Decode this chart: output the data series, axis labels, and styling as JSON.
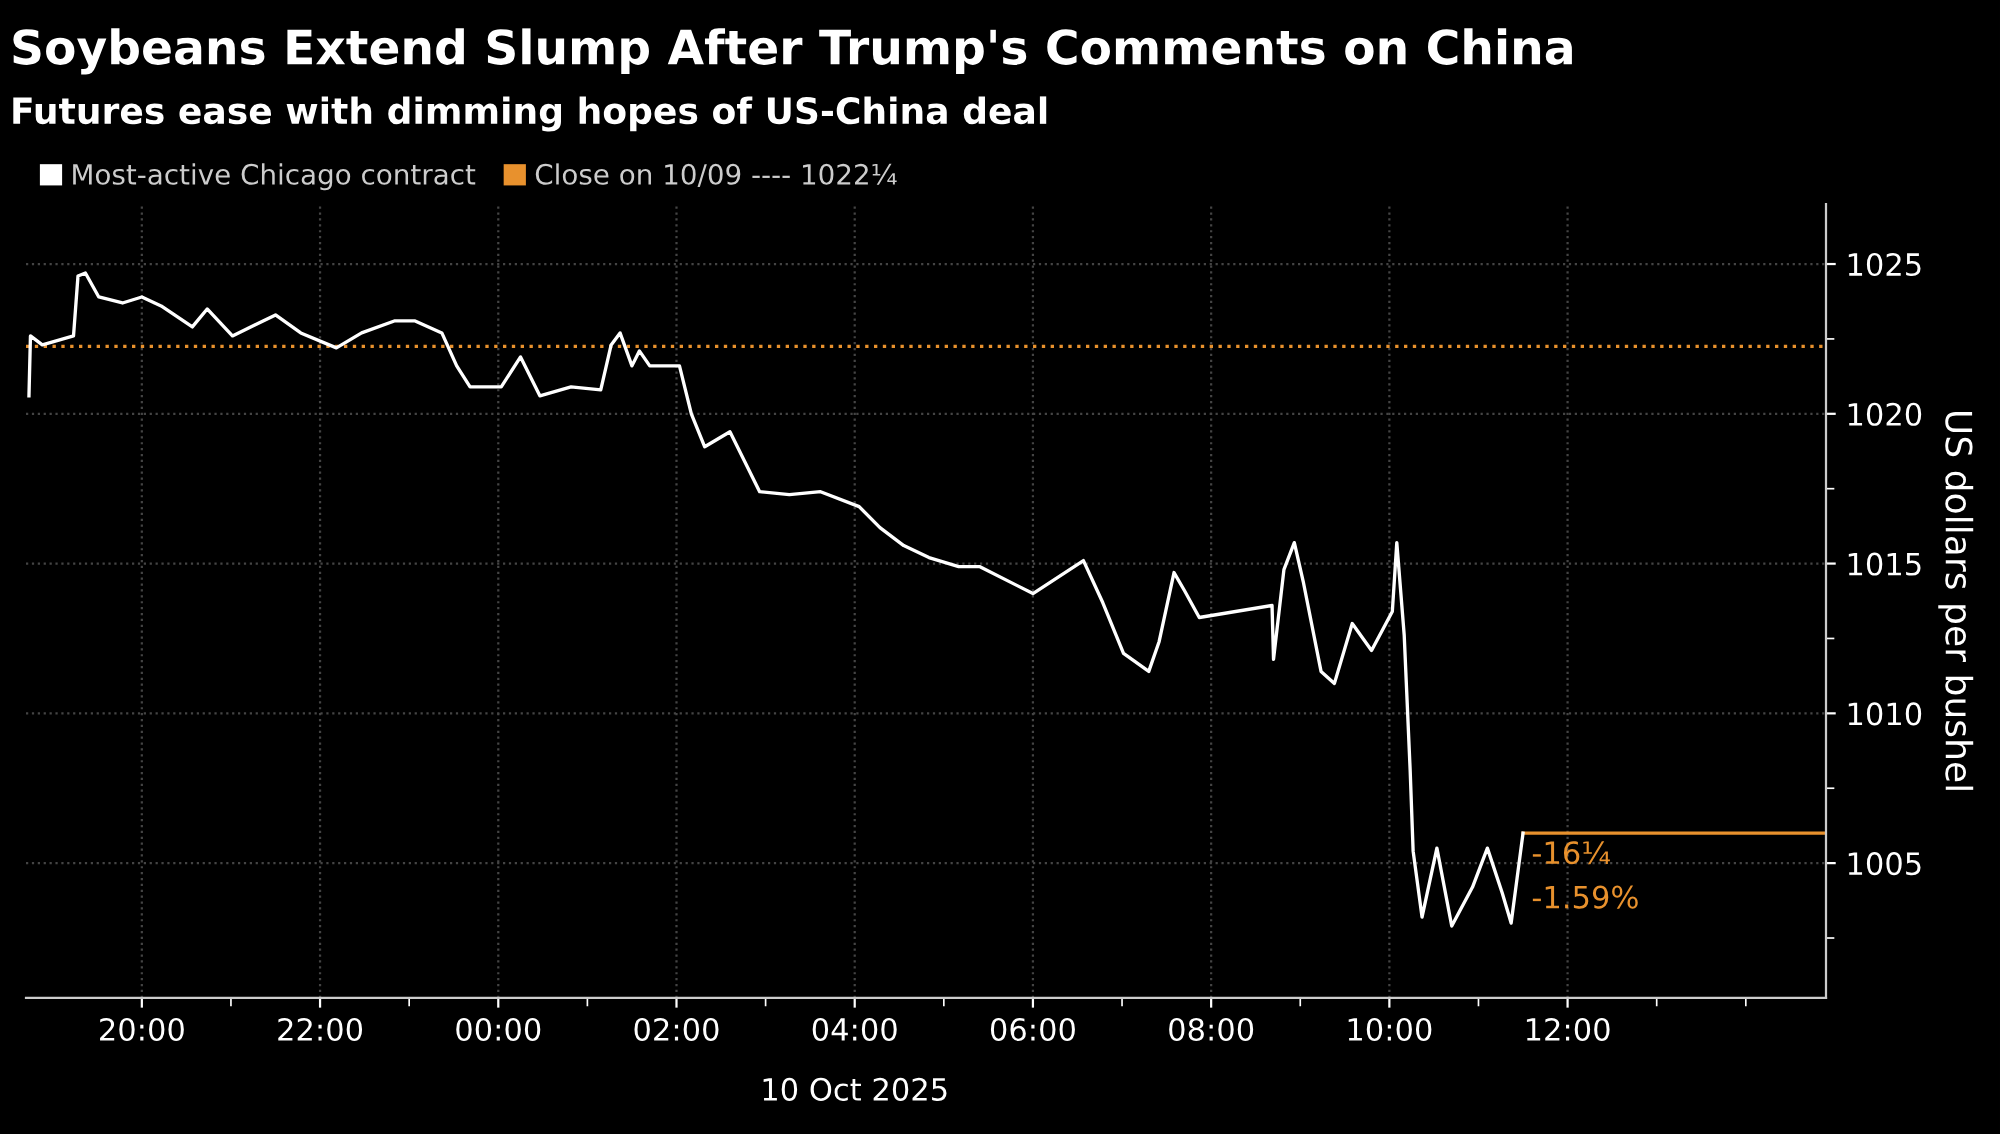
{
  "chart_data": {
    "type": "line",
    "title": "Soybeans Extend Slump After Trump's Comments on China",
    "subtitle": "Futures ease with dimming hopes of US-China deal",
    "ylabel": "US dollars per bushel",
    "series": [
      {
        "name": "Most-active Chicago contract",
        "color": "#ffffff",
        "x": [
          "2025-10-09T18:44",
          "2025-10-09T18:45",
          "2025-10-09T18:53",
          "2025-10-09T19:07",
          "2025-10-09T19:14",
          "2025-10-09T19:17",
          "2025-10-09T19:22",
          "2025-10-09T19:31",
          "2025-10-09T19:47",
          "2025-10-09T20:00",
          "2025-10-09T20:13",
          "2025-10-09T20:34",
          "2025-10-09T20:44",
          "2025-10-09T21:01",
          "2025-10-09T21:30",
          "2025-10-09T21:47",
          "2025-10-09T22:11",
          "2025-10-09T22:28",
          "2025-10-09T22:50",
          "2025-10-09T23:04",
          "2025-10-09T23:22",
          "2025-10-09T23:32",
          "2025-10-09T23:41",
          "2025-10-10T00:02",
          "2025-10-10T00:15",
          "2025-10-10T00:28",
          "2025-10-10T00:49",
          "2025-10-10T01:09",
          "2025-10-10T01:16",
          "2025-10-10T01:22",
          "2025-10-10T01:30",
          "2025-10-10T01:35",
          "2025-10-10T01:42",
          "2025-10-10T02:02",
          "2025-10-10T02:10",
          "2025-10-10T02:19",
          "2025-10-10T02:36",
          "2025-10-10T02:46",
          "2025-10-10T02:56",
          "2025-10-10T03:16",
          "2025-10-10T03:37",
          "2025-10-10T04:03",
          "2025-10-10T04:17",
          "2025-10-10T04:33",
          "2025-10-10T04:50",
          "2025-10-10T05:10",
          "2025-10-10T05:24",
          "2025-10-10T06:00",
          "2025-10-10T06:34",
          "2025-10-10T06:47",
          "2025-10-10T07:01",
          "2025-10-10T07:18",
          "2025-10-10T07:25",
          "2025-10-10T07:35",
          "2025-10-10T07:42",
          "2025-10-10T07:52",
          "2025-10-10T08:41",
          "2025-10-10T08:42",
          "2025-10-10T08:49",
          "2025-10-10T08:56",
          "2025-10-10T09:02",
          "2025-10-10T09:14",
          "2025-10-10T09:23",
          "2025-10-10T09:35",
          "2025-10-10T09:48",
          "2025-10-10T10:02",
          "2025-10-10T10:05",
          "2025-10-10T10:10",
          "2025-10-10T10:14",
          "2025-10-10T10:16",
          "2025-10-10T10:22",
          "2025-10-10T10:32",
          "2025-10-10T10:42",
          "2025-10-10T10:56",
          "2025-10-10T11:06",
          "2025-10-10T11:16",
          "2025-10-10T11:22",
          "2025-10-10T11:26",
          "2025-10-10T11:30"
        ],
        "values": [
          1020.6,
          1022.6,
          1022.3,
          1022.5,
          1022.6,
          1024.6,
          1024.7,
          1023.9,
          1023.7,
          1023.9,
          1023.6,
          1022.9,
          1023.5,
          1022.6,
          1023.3,
          1022.7,
          1022.2,
          1022.7,
          1023.1,
          1023.1,
          1022.7,
          1021.6,
          1020.9,
          1020.9,
          1021.9,
          1020.6,
          1020.9,
          1020.8,
          1022.3,
          1022.7,
          1021.6,
          1022.1,
          1021.6,
          1021.6,
          1020.0,
          1018.9,
          1019.4,
          1018.4,
          1017.4,
          1017.3,
          1017.4,
          1016.9,
          1016.2,
          1015.6,
          1015.2,
          1014.9,
          1014.9,
          1014.0,
          1015.1,
          1013.7,
          1012.0,
          1011.4,
          1012.4,
          1014.7,
          1014.1,
          1013.2,
          1013.6,
          1011.8,
          1014.8,
          1015.7,
          1014.4,
          1011.4,
          1011.0,
          1013.0,
          1012.1,
          1013.4,
          1015.7,
          1012.6,
          1008.1,
          1005.4,
          1003.2,
          1005.5,
          1002.9,
          1004.2,
          1005.5,
          1004.0,
          1003.0,
          1004.5,
          1006.0
        ]
      }
    ],
    "ref_lines": [
      {
        "axis": "y",
        "value": 1022.25,
        "label": "Close on 10/09 ---- 1022¼",
        "color": "#e8912d",
        "line_style": "dotted"
      },
      {
        "axis": "y",
        "value": 1006.0,
        "color": "#e8912d",
        "line_style": "solid"
      }
    ],
    "annotations": [
      {
        "text": "-16¼",
        "x": "2025-10-10T11:30",
        "y": 1006.0
      },
      {
        "text": "-1.59%",
        "x": "2025-10-10T11:30",
        "y": 1006.0
      },
      "10 Oct 2025"
    ],
    "xlim": [
      "2025-10-09T18:42",
      "2025-10-10T14:54"
    ],
    "xticks": [
      {
        "value": "2025-10-09T20:00",
        "label": "20:00"
      },
      {
        "value": "2025-10-09T21:00",
        "label": null
      },
      {
        "value": "2025-10-09T22:00",
        "label": "22:00"
      },
      {
        "value": "2025-10-09T23:00",
        "label": null
      },
      {
        "value": "2025-10-10T00:00",
        "label": "00:00"
      },
      {
        "value": "2025-10-10T01:00",
        "label": null
      },
      {
        "value": "2025-10-10T02:00",
        "label": "02:00"
      },
      {
        "value": "2025-10-10T03:00",
        "label": null
      },
      {
        "value": "2025-10-10T04:00",
        "label": "04:00"
      },
      {
        "value": "2025-10-10T05:00",
        "label": null
      },
      {
        "value": "2025-10-10T06:00",
        "label": "06:00"
      },
      {
        "value": "2025-10-10T07:00",
        "label": null
      },
      {
        "value": "2025-10-10T08:00",
        "label": "08:00"
      },
      {
        "value": "2025-10-10T09:00",
        "label": null
      },
      {
        "value": "2025-10-10T10:00",
        "label": "10:00"
      },
      {
        "value": "2025-10-10T11:00",
        "label": null
      },
      {
        "value": "2025-10-10T12:00",
        "label": "12:00"
      },
      {
        "value": "2025-10-10T13:00",
        "label": null
      },
      {
        "value": "2025-10-10T14:00",
        "label": null
      }
    ],
    "ylim": [
      1000.5,
      1027
    ],
    "yticks": [
      {
        "value": 1002.5,
        "label": null
      },
      1005,
      {
        "value": 1007.5,
        "label": null
      },
      1010,
      {
        "value": 1012.5,
        "label": null
      },
      1015,
      {
        "value": 1017.5,
        "label": null
      },
      1020,
      {
        "value": 1022.5,
        "label": null
      },
      1025
    ],
    "grid": true,
    "legend": "top left",
    "line_style": "solid",
    "marker": "none"
  }
}
